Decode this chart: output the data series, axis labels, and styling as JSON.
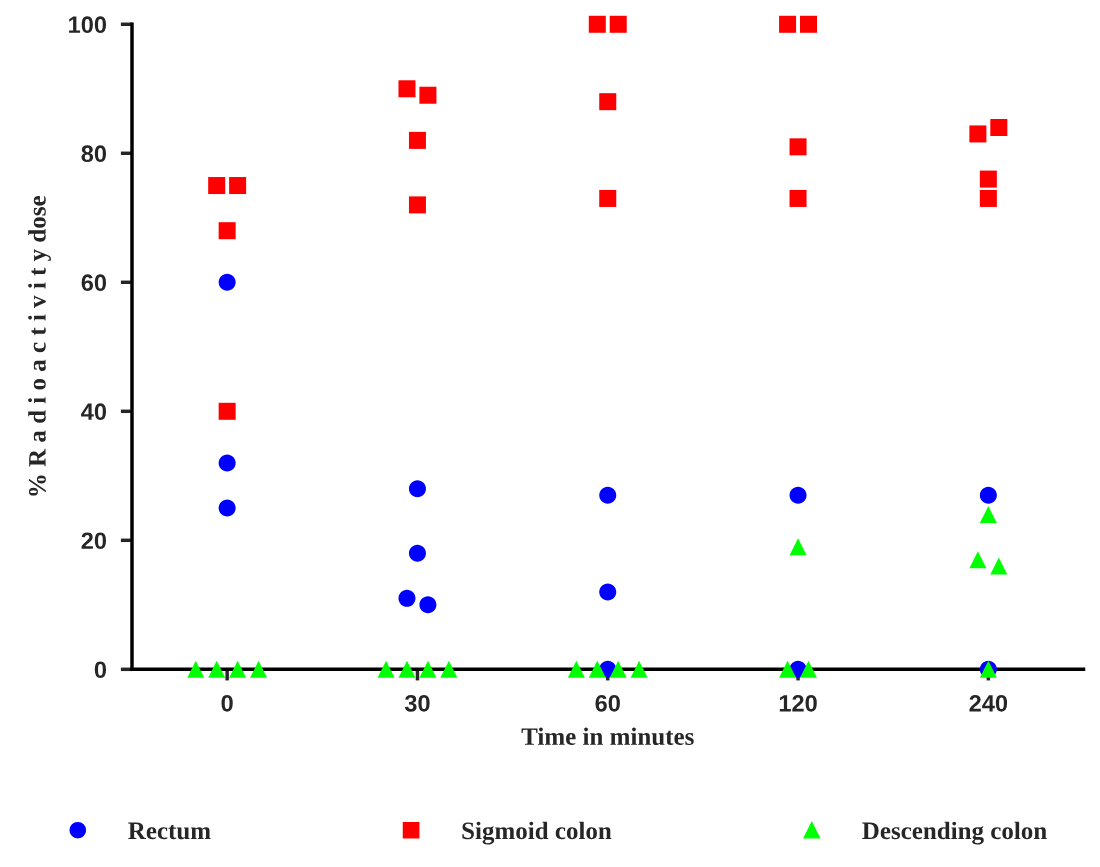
{
  "chart_data": {
    "type": "scatter",
    "xlabel": "Time in minutes",
    "ylabel": "% R a d i o a c t i v i t y dose",
    "categories": [
      "0",
      "30",
      "60",
      "120",
      "240"
    ],
    "series": [
      {
        "name": "Rectum",
        "color": "#0000ff",
        "marker": "circle",
        "x": [
          "0",
          "0",
          "0",
          "30",
          "30",
          "30",
          "30",
          "60",
          "60",
          "60",
          "120",
          "120",
          "240",
          "240"
        ],
        "values": [
          60,
          32,
          25,
          28,
          18,
          11,
          10,
          27,
          12,
          0,
          27,
          0,
          27,
          0
        ]
      },
      {
        "name": "Sigmoid colon",
        "color": "#ff0000",
        "marker": "square",
        "x": [
          "0",
          "0",
          "0",
          "0",
          "30",
          "30",
          "30",
          "30",
          "60",
          "60",
          "60",
          "60",
          "120",
          "120",
          "120",
          "120",
          "240",
          "240",
          "240",
          "240"
        ],
        "values": [
          75,
          75,
          68,
          40,
          90,
          89,
          82,
          72,
          100,
          100,
          88,
          73,
          100,
          100,
          81,
          73,
          76,
          83,
          84,
          73
        ]
      },
      {
        "name": "Descending colon",
        "color": "#00ff00",
        "marker": "triangle",
        "x": [
          "0",
          "0",
          "0",
          "0",
          "30",
          "30",
          "30",
          "30",
          "60",
          "60",
          "60",
          "60",
          "120",
          "120",
          "120",
          "240",
          "240",
          "240",
          "240"
        ],
        "values": [
          0,
          0,
          0,
          0,
          0,
          0,
          0,
          0,
          0,
          0,
          0,
          0,
          0,
          19,
          0,
          17,
          24,
          16,
          0
        ]
      }
    ],
    "ylim": [
      0,
      100
    ],
    "yticks": [
      0,
      20,
      40,
      60,
      80,
      100
    ],
    "grid": false,
    "legend": "bottom"
  }
}
